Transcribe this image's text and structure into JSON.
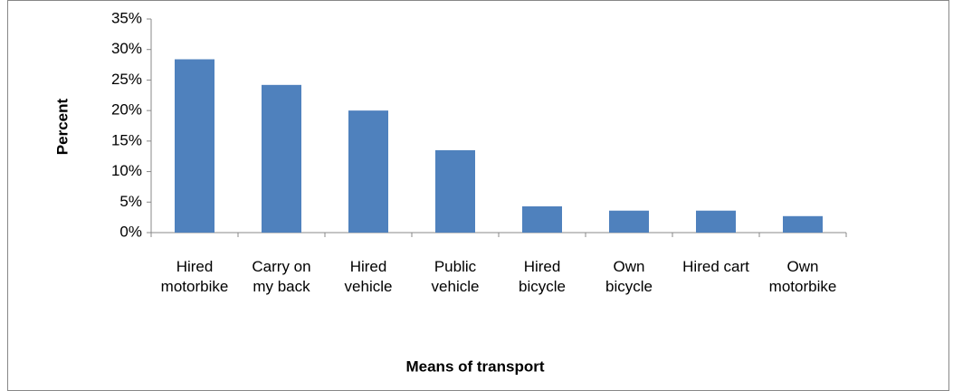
{
  "chart_data": {
    "type": "bar",
    "x_label": "Means of transport",
    "y_label": "Percent",
    "categories": [
      "Hired motorbike",
      "Carry on my back",
      "Hired vehicle",
      "Public vehicle",
      "Hired bicycle",
      "Own bicycle",
      "Hired cart",
      "Own motorbike"
    ],
    "values": [
      28.4,
      24.2,
      20.0,
      13.5,
      4.3,
      3.6,
      3.6,
      2.7
    ],
    "color": "#4f81bd",
    "ylim": [
      0,
      35
    ],
    "yticks": [
      {
        "value": 0,
        "label": "0%"
      },
      {
        "value": 5,
        "label": "5%"
      },
      {
        "value": 10,
        "label": "10%"
      },
      {
        "value": 15,
        "label": "15%"
      },
      {
        "value": 20,
        "label": "20%"
      },
      {
        "value": 25,
        "label": "25%"
      },
      {
        "value": 30,
        "label": "30%"
      },
      {
        "value": 35,
        "label": "35%"
      }
    ],
    "grid": false
  }
}
